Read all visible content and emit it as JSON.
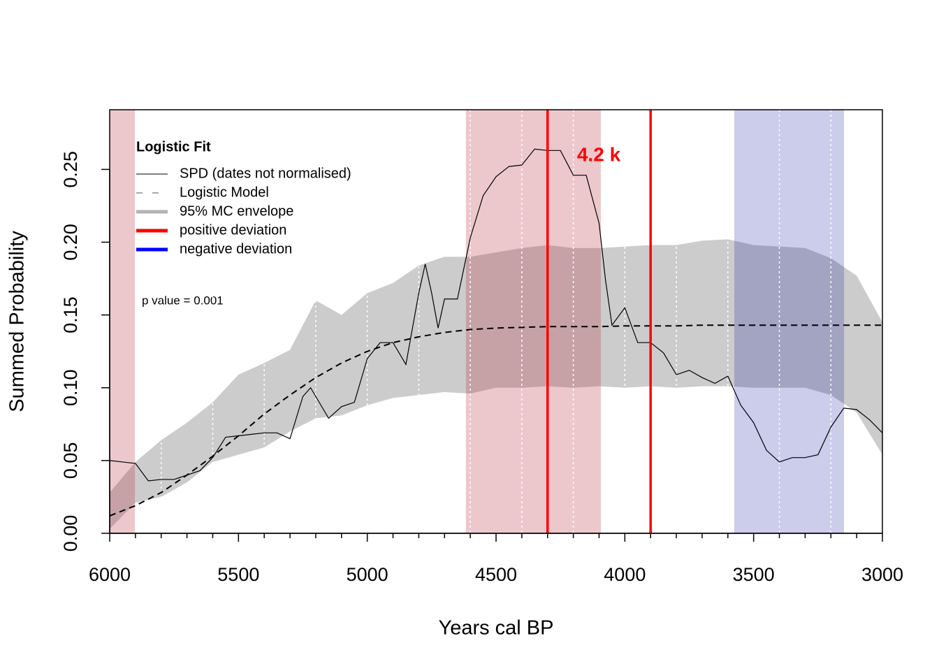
{
  "chart_data": {
    "type": "line",
    "xlabel": "Years cal BP",
    "ylabel": "Summed Probability",
    "xlim": [
      6000,
      3000
    ],
    "ylim": [
      0,
      0.291
    ],
    "xticks": [
      6000,
      5500,
      5000,
      4500,
      4000,
      3500,
      3000
    ],
    "xminorticks": [
      5900,
      5800,
      5700,
      5600,
      5400,
      5300,
      5200,
      5100,
      4900,
      4800,
      4700,
      4600,
      4400,
      4300,
      4200,
      4100,
      3900,
      3800,
      3700,
      3600,
      3400,
      3300,
      3200,
      3100
    ],
    "yticks": [
      {
        "value": 0,
        "label": "0.00"
      },
      {
        "value": 0.05,
        "label": "0.05"
      },
      {
        "value": 0.1,
        "label": "0.10"
      },
      {
        "value": 0.15,
        "label": "0.15"
      },
      {
        "value": 0.2,
        "label": "0.20"
      },
      {
        "value": 0.25,
        "label": "0.25"
      }
    ],
    "legend_title": "Logistic Fit",
    "legend": "top-left",
    "series": [
      {
        "name": "SPD (dates not normalised)",
        "color": "#000000",
        "style": "solid",
        "x": [
          6000,
          5950,
          5900,
          5850,
          5800,
          5750,
          5700,
          5650,
          5600,
          5550,
          5500,
          5450,
          5400,
          5350,
          5300,
          5250,
          5220,
          5200,
          5150,
          5100,
          5050,
          5000,
          4950,
          4900,
          4850,
          4800,
          4775,
          4750,
          4725,
          4700,
          4650,
          4600,
          4550,
          4500,
          4450,
          4400,
          4350,
          4300,
          4250,
          4200,
          4150,
          4100,
          4075,
          4050,
          4000,
          3950,
          3900,
          3850,
          3800,
          3750,
          3700,
          3650,
          3600,
          3550,
          3500,
          3450,
          3400,
          3350,
          3300,
          3250,
          3200,
          3150,
          3100,
          3050,
          3000
        ],
        "values": [
          0.05,
          0.049,
          0.048,
          0.036,
          0.037,
          0.037,
          0.04,
          0.043,
          0.052,
          0.066,
          0.067,
          0.068,
          0.069,
          0.069,
          0.065,
          0.094,
          0.1,
          0.094,
          0.079,
          0.087,
          0.09,
          0.12,
          0.131,
          0.131,
          0.116,
          0.165,
          0.185,
          0.165,
          0.141,
          0.161,
          0.161,
          0.203,
          0.232,
          0.245,
          0.252,
          0.253,
          0.264,
          0.263,
          0.263,
          0.246,
          0.246,
          0.213,
          0.174,
          0.143,
          0.155,
          0.131,
          0.131,
          0.124,
          0.109,
          0.112,
          0.107,
          0.103,
          0.108,
          0.088,
          0.076,
          0.057,
          0.049,
          0.052,
          0.052,
          0.054,
          0.073,
          0.086,
          0.085,
          0.078,
          0.069
        ]
      },
      {
        "name": "Logistic Model",
        "color": "#000000",
        "style": "dashed",
        "x": [
          6000,
          5900,
          5800,
          5700,
          5600,
          5500,
          5400,
          5300,
          5200,
          5100,
          5000,
          4900,
          4800,
          4700,
          4600,
          4500,
          4400,
          4300,
          4200,
          4100,
          4000,
          3900,
          3800,
          3700,
          3600,
          3500,
          3400,
          3300,
          3200,
          3100,
          3000
        ],
        "values": [
          0.012,
          0.019,
          0.028,
          0.04,
          0.053,
          0.067,
          0.082,
          0.095,
          0.107,
          0.117,
          0.125,
          0.131,
          0.135,
          0.138,
          0.14,
          0.141,
          0.1415,
          0.142,
          0.142,
          0.142,
          0.1425,
          0.1425,
          0.1425,
          0.143,
          0.143,
          0.143,
          0.143,
          0.143,
          0.143,
          0.143,
          0.143
        ]
      }
    ],
    "envelope": {
      "name": "95% MC envelope",
      "color": "#cccccc",
      "legend_color": "#b3b3b3",
      "x": [
        6000,
        5900,
        5800,
        5700,
        5600,
        5500,
        5400,
        5300,
        5200,
        5100,
        5000,
        4900,
        4800,
        4700,
        4600,
        4500,
        4400,
        4300,
        4200,
        4100,
        4000,
        3900,
        3800,
        3700,
        3600,
        3500,
        3400,
        3300,
        3200,
        3100,
        3000
      ],
      "upper": [
        0.028,
        0.049,
        0.064,
        0.076,
        0.09,
        0.109,
        0.117,
        0.126,
        0.16,
        0.15,
        0.165,
        0.172,
        0.184,
        0.19,
        0.19,
        0.193,
        0.196,
        0.198,
        0.196,
        0.196,
        0.197,
        0.198,
        0.198,
        0.201,
        0.202,
        0.198,
        0.197,
        0.196,
        0.189,
        0.177,
        0.145
      ],
      "lower": [
        0.003,
        0.021,
        0.025,
        0.035,
        0.049,
        0.054,
        0.059,
        0.07,
        0.079,
        0.081,
        0.088,
        0.093,
        0.095,
        0.097,
        0.096,
        0.1,
        0.1,
        0.101,
        0.1,
        0.101,
        0.1,
        0.101,
        0.1,
        0.101,
        0.101,
        0.1,
        0.1,
        0.1,
        0.095,
        0.083,
        0.054
      ]
    },
    "deviations": [
      {
        "name": "positive deviation",
        "color": "#ff0000",
        "fill": "rgba(178,34,52,0.25)",
        "ranges": [
          [
            6000,
            5902
          ],
          [
            4617,
            4093
          ]
        ]
      },
      {
        "name": "negative deviation",
        "color": "#0000ff",
        "fill": "rgba(0,0,153,0.2)",
        "ranges": [
          [
            3575,
            3149
          ]
        ]
      }
    ],
    "vlines": {
      "color": "#ff0000",
      "x": [
        4300,
        3900
      ]
    },
    "guide_lines": {
      "color": "#ffffff",
      "x": [
        5800,
        5600,
        5400,
        5200,
        5000,
        4800,
        4600,
        4400,
        4200,
        4000,
        3800,
        3600,
        3400,
        3200
      ]
    },
    "annotations": [
      {
        "text": "p value = 0.001"
      },
      {
        "text": "4.2 k",
        "color": "#ff0000"
      }
    ]
  }
}
